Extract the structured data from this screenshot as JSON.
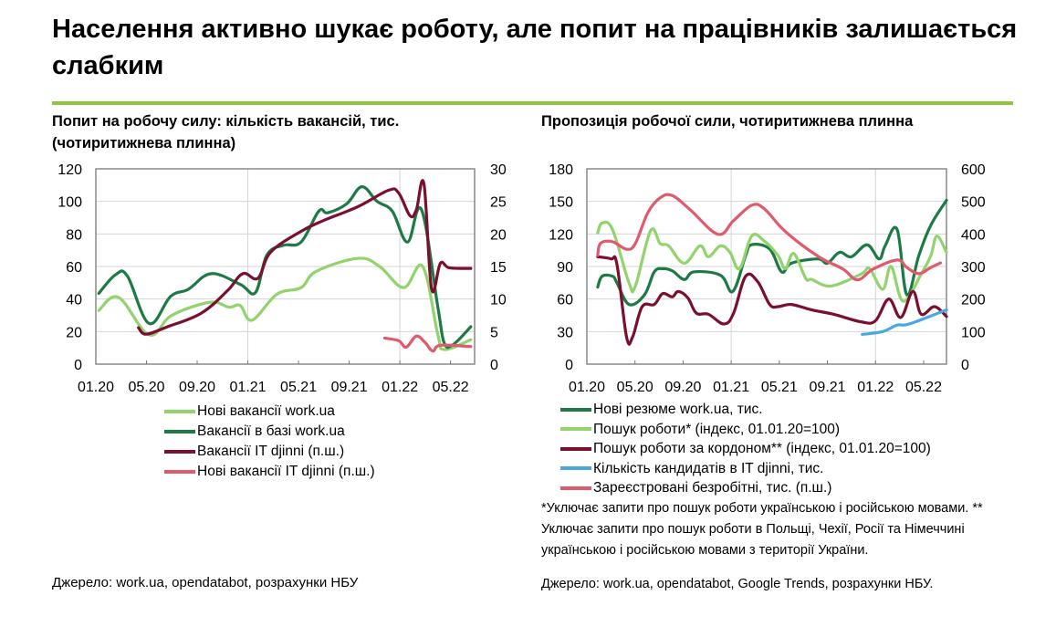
{
  "title": "Населення активно шукає роботу, але попит на працівників залишається слабким",
  "colors": {
    "rule": "#8dc63f",
    "dark_green": "#1e7a45",
    "light_green": "#92d36e",
    "maroon": "#7a0f2e",
    "pink": "#e05a6e",
    "blue": "#4aa8e0"
  },
  "chart_data": [
    {
      "type": "line",
      "title": "Попит на робочу силу: кількість вакансій, тис. (чотиритижнева плинна)",
      "xlim": [
        "2020-01-01",
        "2022-06-28"
      ],
      "x_tick_labels": [
        "01.20",
        "05.20",
        "09.20",
        "01.21",
        "05.21",
        "09.21",
        "01.22",
        "05.22"
      ],
      "ylim_left": [
        0,
        120
      ],
      "y_ticks_left": [
        "0",
        "20",
        "40",
        "60",
        "80",
        "100",
        "120"
      ],
      "ylim_right": [
        0,
        30
      ],
      "y_ticks_right": [
        "0",
        "5",
        "10",
        "15",
        "20",
        "25",
        "30"
      ],
      "grid": true,
      "legend_position": "bottom",
      "series": [
        {
          "name": "Нові вакансії work.ua",
          "axis": "left",
          "color": "#92d36e",
          "points": [
            [
              "2020-01-08",
              33
            ],
            [
              "2020-02-25",
              41
            ],
            [
              "2020-05-07",
              18
            ],
            [
              "2020-07-01",
              30
            ],
            [
              "2020-10-01",
              38
            ],
            [
              "2020-11-16",
              35
            ],
            [
              "2020-12-13",
              36
            ],
            [
              "2021-01-11",
              27
            ],
            [
              "2021-03-10",
              43
            ],
            [
              "2021-05-07",
              47
            ],
            [
              "2021-06-13",
              57
            ],
            [
              "2021-09-22",
              65
            ],
            [
              "2021-11-13",
              60
            ],
            [
              "2022-01-10",
              47
            ],
            [
              "2022-02-25",
              60
            ],
            [
              "2022-04-01",
              18
            ],
            [
              "2022-04-16",
              9
            ],
            [
              "2022-06-19",
              15
            ]
          ]
        },
        {
          "name": "Вакансії в базі work.ua",
          "axis": "left",
          "color": "#1e7a45",
          "points": [
            [
              "2020-01-08",
              43.5
            ],
            [
              "2020-02-18",
              55
            ],
            [
              "2020-03-16",
              54
            ],
            [
              "2020-05-07",
              25
            ],
            [
              "2020-06-28",
              41.6
            ],
            [
              "2020-08-10",
              46
            ],
            [
              "2020-10-04",
              55.6
            ],
            [
              "2020-12-13",
              49
            ],
            [
              "2021-01-19",
              44
            ],
            [
              "2021-02-16",
              67
            ],
            [
              "2021-03-25",
              73
            ],
            [
              "2021-05-07",
              75
            ],
            [
              "2021-06-19",
              94
            ],
            [
              "2021-07-10",
              93
            ],
            [
              "2021-08-25",
              98.5
            ],
            [
              "2021-10-01",
              109
            ],
            [
              "2021-11-07",
              100
            ],
            [
              "2021-12-13",
              94
            ],
            [
              "2022-01-19",
              75
            ],
            [
              "2022-02-22",
              95
            ],
            [
              "2022-04-01",
              35
            ],
            [
              "2022-04-16",
              13
            ],
            [
              "2022-05-07",
              12
            ],
            [
              "2022-06-19",
              23
            ]
          ]
        },
        {
          "name": "Вакансії IT djinni (п.ш.)",
          "axis": "right",
          "color": "#7a0f2e",
          "points": [
            [
              "2020-04-12",
              5.6
            ],
            [
              "2020-04-30",
              4.6
            ],
            [
              "2020-06-19",
              5.7
            ],
            [
              "2020-09-10",
              7.8
            ],
            [
              "2020-11-13",
              11.3
            ],
            [
              "2020-12-19",
              13.9
            ],
            [
              "2021-01-25",
              13.2
            ],
            [
              "2021-02-25",
              17.2
            ],
            [
              "2021-05-07",
              20.4
            ],
            [
              "2021-06-28",
              22
            ],
            [
              "2021-09-22",
              24.2
            ],
            [
              "2021-12-04",
              26.7
            ],
            [
              "2021-12-28",
              26.3
            ],
            [
              "2022-01-25",
              22.8
            ],
            [
              "2022-02-10",
              23.7
            ],
            [
              "2022-02-28",
              27.7
            ],
            [
              "2022-03-16",
              11.6
            ],
            [
              "2022-04-07",
              15.5
            ],
            [
              "2022-04-28",
              14.8
            ],
            [
              "2022-06-19",
              14.7
            ]
          ]
        },
        {
          "name": "Нові вакансії IT djinni (п.ш.)",
          "axis": "right",
          "color": "#e05a6e",
          "points": [
            [
              "2021-11-25",
              4
            ],
            [
              "2021-12-28",
              3.6
            ],
            [
              "2022-01-16",
              2.6
            ],
            [
              "2022-02-10",
              4.3
            ],
            [
              "2022-03-01",
              3.3
            ],
            [
              "2022-03-19",
              2
            ],
            [
              "2022-04-07",
              2.9
            ],
            [
              "2022-06-19",
              2.7
            ]
          ]
        }
      ]
    },
    {
      "type": "line",
      "title": "Пропозиція робочої сили, чотиритижнева плинна",
      "xlim": [
        "2020-01-01",
        "2022-06-28"
      ],
      "x_tick_labels": [
        "01.20",
        "05.20",
        "09.20",
        "01.21",
        "05.21",
        "09.21",
        "01.22",
        "05.22"
      ],
      "ylim_left": [
        0,
        180
      ],
      "y_ticks_left": [
        "0",
        "30",
        "60",
        "90",
        "120",
        "150",
        "180"
      ],
      "ylim_right": [
        0,
        600
      ],
      "y_ticks_right": [
        "0",
        "100",
        "200",
        "300",
        "400",
        "500",
        "600"
      ],
      "grid": true,
      "legend_position": "bottom",
      "series": [
        {
          "name": "Нові резюме work.ua, тис.",
          "axis": "left",
          "color": "#1e7a45",
          "points": [
            [
              "2020-01-28",
              71
            ],
            [
              "2020-02-09",
              81
            ],
            [
              "2020-03-05",
              81
            ],
            [
              "2020-03-16",
              75
            ],
            [
              "2020-04-16",
              55
            ],
            [
              "2020-05-25",
              64
            ],
            [
              "2020-06-19",
              85
            ],
            [
              "2020-07-10",
              88
            ],
            [
              "2020-08-04",
              86
            ],
            [
              "2020-09-04",
              78
            ],
            [
              "2020-09-28",
              85
            ],
            [
              "2020-12-04",
              82
            ],
            [
              "2021-01-05",
              67
            ],
            [
              "2021-02-07",
              100
            ],
            [
              "2021-02-22",
              110
            ],
            [
              "2021-04-07",
              106
            ],
            [
              "2021-05-07",
              85
            ],
            [
              "2021-06-01",
              93
            ],
            [
              "2021-08-07",
              97
            ],
            [
              "2021-09-01",
              93
            ],
            [
              "2021-10-01",
              103
            ],
            [
              "2021-11-01",
              99
            ],
            [
              "2021-12-10",
              110
            ],
            [
              "2022-01-10",
              97
            ],
            [
              "2022-01-25",
              109
            ],
            [
              "2022-02-25",
              124
            ],
            [
              "2022-03-19",
              64
            ],
            [
              "2022-04-19",
              100
            ],
            [
              "2022-05-19",
              128
            ],
            [
              "2022-06-28",
              151
            ]
          ]
        },
        {
          "name": "Пошук роботи* (індекс, 01.01.20=100)",
          "axis": "left",
          "color": "#92d36e",
          "points": [
            [
              "2020-01-28",
              121
            ],
            [
              "2020-02-09",
              130
            ],
            [
              "2020-03-05",
              124
            ],
            [
              "2020-04-16",
              75
            ],
            [
              "2020-05-02",
              72
            ],
            [
              "2020-06-10",
              123
            ],
            [
              "2020-07-04",
              111
            ],
            [
              "2020-07-25",
              109
            ],
            [
              "2020-09-04",
              93
            ],
            [
              "2020-10-13",
              109
            ],
            [
              "2020-11-04",
              99
            ],
            [
              "2020-12-04",
              109
            ],
            [
              "2020-12-28",
              103
            ],
            [
              "2021-01-22",
              88
            ],
            [
              "2021-02-22",
              118
            ],
            [
              "2021-03-22",
              114
            ],
            [
              "2021-04-28",
              100
            ],
            [
              "2021-05-16",
              88
            ],
            [
              "2021-06-07",
              102
            ],
            [
              "2021-07-07",
              79
            ],
            [
              "2021-07-22",
              78
            ],
            [
              "2021-09-10",
              72
            ],
            [
              "2021-11-25",
              83
            ],
            [
              "2021-12-16",
              88
            ],
            [
              "2022-01-19",
              69
            ],
            [
              "2022-02-10",
              90
            ],
            [
              "2022-03-10",
              58
            ],
            [
              "2022-04-25",
              83
            ],
            [
              "2022-05-19",
              100
            ],
            [
              "2022-06-04",
              118
            ],
            [
              "2022-06-28",
              103
            ]
          ]
        },
        {
          "name": "Пошук роботи за кордоном** (індекс, 01.01.20=100)",
          "axis": "left",
          "color": "#7a0f2e",
          "points": [
            [
              "2020-01-28",
              99
            ],
            [
              "2020-03-01",
              97
            ],
            [
              "2020-03-16",
              92
            ],
            [
              "2020-04-10",
              25
            ],
            [
              "2020-04-25",
              25
            ],
            [
              "2020-05-19",
              53
            ],
            [
              "2020-06-19",
              55
            ],
            [
              "2020-07-10",
              65
            ],
            [
              "2020-08-04",
              62
            ],
            [
              "2020-08-19",
              67
            ],
            [
              "2020-09-13",
              61
            ],
            [
              "2020-10-04",
              47
            ],
            [
              "2020-11-04",
              46
            ],
            [
              "2020-12-13",
              37
            ],
            [
              "2021-01-07",
              47
            ],
            [
              "2021-02-07",
              81
            ],
            [
              "2021-03-07",
              76
            ],
            [
              "2021-04-07",
              55
            ],
            [
              "2021-04-28",
              53
            ],
            [
              "2021-06-01",
              55
            ],
            [
              "2021-07-22",
              50
            ],
            [
              "2021-09-16",
              46
            ],
            [
              "2021-11-25",
              39
            ],
            [
              "2022-01-01",
              40
            ],
            [
              "2022-02-04",
              60
            ],
            [
              "2022-03-04",
              43
            ],
            [
              "2022-04-04",
              67
            ],
            [
              "2022-04-25",
              46
            ],
            [
              "2022-05-28",
              53
            ],
            [
              "2022-06-28",
              44
            ]
          ]
        },
        {
          "name": "Кількість кандидатів в IT djinni, тис.",
          "axis": "left",
          "color": "#4aa8e0",
          "points": [
            [
              "2021-11-28",
              27.4
            ],
            [
              "2022-01-19",
              30
            ],
            [
              "2022-02-25",
              36
            ],
            [
              "2022-03-25",
              37
            ],
            [
              "2022-06-28",
              50
            ]
          ]
        },
        {
          "name": "Зареєстровані безробітні, тис. (п.ш.)",
          "axis": "right",
          "color": "#e05a6e",
          "points": [
            [
              "2020-01-28",
              334
            ],
            [
              "2020-02-05",
              371
            ],
            [
              "2020-03-05",
              376
            ],
            [
              "2020-04-10",
              353
            ],
            [
              "2020-05-02",
              371
            ],
            [
              "2020-06-03",
              465
            ],
            [
              "2020-07-04",
              511
            ],
            [
              "2020-08-04",
              518
            ],
            [
              "2020-09-19",
              474
            ],
            [
              "2020-11-28",
              399
            ],
            [
              "2021-01-07",
              441
            ],
            [
              "2021-02-22",
              488
            ],
            [
              "2021-03-22",
              479
            ],
            [
              "2021-05-07",
              418
            ],
            [
              "2021-06-22",
              371
            ],
            [
              "2021-08-16",
              325
            ],
            [
              "2021-10-10",
              292
            ],
            [
              "2021-11-16",
              259
            ],
            [
              "2021-12-25",
              292
            ],
            [
              "2022-02-25",
              320
            ],
            [
              "2022-03-19",
              297
            ],
            [
              "2022-04-19",
              278
            ],
            [
              "2022-05-19",
              297
            ],
            [
              "2022-06-13",
              311
            ]
          ]
        }
      ]
    }
  ],
  "footnote": "*Уключає запити про пошук роботи українською і російською мовами. ** Уключає запити про пошук роботи в Польщі, Чехії, Росії та Німеччині українською і російською мовами з території України.",
  "source_left": "Джерело: work.ua, opendatabot, розрахунки НБУ",
  "source_right": "Джерело: work.ua, opendatabot, Google Trends, розрахунки НБУ."
}
